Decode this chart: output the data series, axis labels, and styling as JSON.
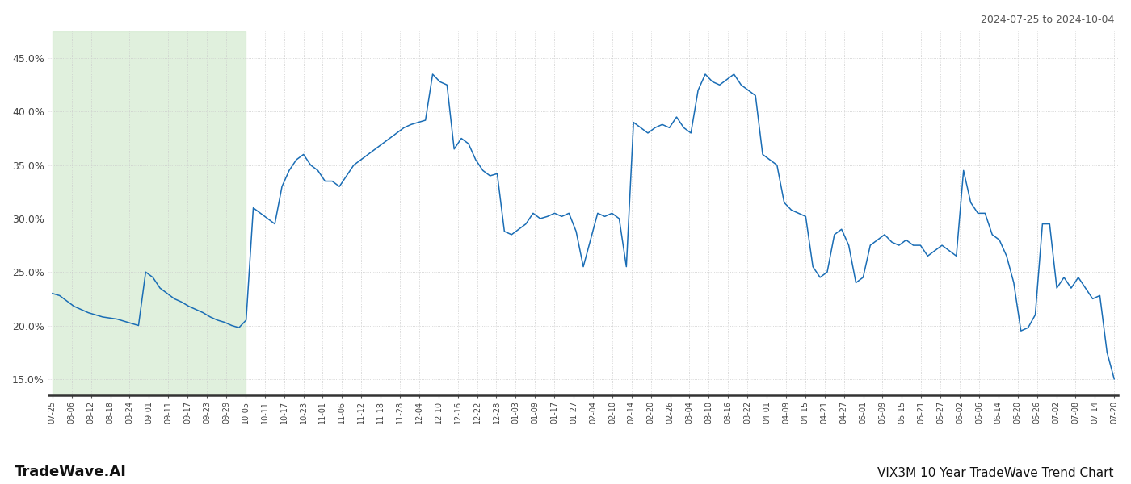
{
  "title_right": "2024-07-25 to 2024-10-04",
  "footer_left": "TradeWave.AI",
  "footer_right": "VIX3M 10 Year TradeWave Trend Chart",
  "ylim": [
    13.5,
    47.5
  ],
  "yticks": [
    15.0,
    20.0,
    25.0,
    30.0,
    35.0,
    40.0,
    45.0
  ],
  "background_color": "#ffffff",
  "line_color": "#1a6db5",
  "shade_color": "#d6ecd2",
  "shade_alpha": 0.75,
  "x_labels": [
    "07-25",
    "08-06",
    "08-12",
    "08-18",
    "08-24",
    "09-01",
    "09-11",
    "09-17",
    "09-23",
    "09-29",
    "10-05",
    "10-11",
    "10-17",
    "10-23",
    "11-01",
    "11-06",
    "11-12",
    "11-18",
    "11-28",
    "12-04",
    "12-10",
    "12-16",
    "12-22",
    "12-28",
    "01-03",
    "01-09",
    "01-17",
    "01-27",
    "02-04",
    "02-10",
    "02-14",
    "02-20",
    "02-26",
    "03-04",
    "03-10",
    "03-16",
    "03-22",
    "04-01",
    "04-09",
    "04-15",
    "04-21",
    "04-27",
    "05-01",
    "05-09",
    "05-15",
    "05-21",
    "05-27",
    "06-02",
    "06-06",
    "06-14",
    "06-20",
    "06-26",
    "07-02",
    "07-08",
    "07-14",
    "07-20"
  ],
  "shade_label_start": "07-25",
  "shade_label_end": "10-05",
  "values": [
    23.0,
    22.8,
    22.3,
    21.8,
    21.5,
    21.2,
    21.0,
    20.8,
    20.7,
    20.6,
    20.4,
    20.2,
    20.0,
    25.0,
    24.5,
    23.5,
    23.0,
    22.5,
    22.2,
    21.8,
    21.5,
    21.2,
    20.8,
    20.5,
    20.3,
    20.0,
    19.8,
    20.5,
    31.0,
    30.5,
    30.0,
    29.5,
    33.0,
    34.5,
    35.5,
    36.0,
    35.0,
    34.5,
    33.5,
    33.5,
    33.0,
    34.0,
    35.0,
    35.5,
    36.0,
    36.5,
    37.0,
    37.5,
    38.0,
    38.5,
    38.8,
    39.0,
    39.2,
    43.5,
    42.8,
    42.5,
    36.5,
    37.5,
    37.0,
    35.5,
    34.5,
    34.0,
    34.2,
    28.8,
    28.5,
    29.0,
    29.5,
    30.5,
    30.0,
    30.2,
    30.5,
    30.2,
    30.5,
    28.8,
    25.5,
    28.0,
    30.5,
    30.2,
    30.5,
    30.0,
    25.5,
    39.0,
    38.5,
    38.0,
    38.5,
    38.8,
    38.5,
    39.5,
    38.5,
    38.0,
    42.0,
    43.5,
    42.8,
    42.5,
    43.0,
    43.5,
    42.5,
    42.0,
    41.5,
    36.0,
    35.5,
    35.0,
    31.5,
    30.8,
    30.5,
    30.2,
    25.5,
    24.5,
    25.0,
    28.5,
    29.0,
    27.5,
    24.0,
    24.5,
    27.5,
    28.0,
    28.5,
    27.8,
    27.5,
    28.0,
    27.5,
    27.5,
    26.5,
    27.0,
    27.5,
    27.0,
    26.5,
    34.5,
    31.5,
    30.5,
    30.5,
    28.5,
    28.0,
    26.5,
    24.0,
    19.5,
    19.8,
    21.0,
    29.5,
    29.5,
    23.5,
    24.5,
    23.5,
    24.5,
    23.5,
    22.5,
    22.8,
    17.5,
    15.0
  ]
}
